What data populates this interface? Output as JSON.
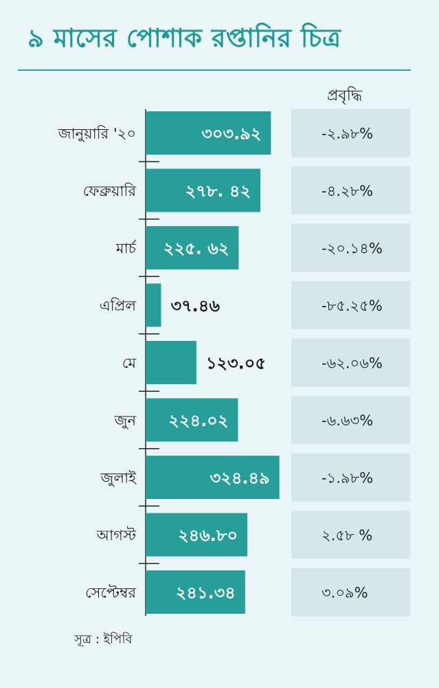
{
  "title": "৯ মাসের পোশাক রপ্তানির চিত্র",
  "growth_header": "প্রবৃদ্ধি",
  "source": "সূত্র : ইপিবি",
  "colors": {
    "bar": "#279e9a",
    "accent": "#1f9a97",
    "growth_cell": "#d5e7ea",
    "background": "#e9f5f7"
  },
  "chart_data": {
    "type": "bar",
    "orientation": "horizontal",
    "title": "৯ মাসের পোশাক রপ্তানির চিত্র",
    "categories": [
      "জানুয়ারি '২০",
      "ফেব্রুয়ারি",
      "মার্চ",
      "এপ্রিল",
      "মে",
      "জুন",
      "জুলাই",
      "আগস্ট",
      "সেপ্টেম্বর"
    ],
    "values": [
      303.92,
      278.42,
      225.62,
      37.46,
      123.05,
      224.02,
      324.49,
      246.8,
      241.34
    ],
    "value_labels": [
      "৩০৩.৯২",
      "২৭৮. ৪২",
      "২২৫. ৬২",
      "৩৭.৪৬",
      "১২৩.০৫",
      "২২৪.০২",
      "৩২৪.৪৯",
      "২৪৬.৮০",
      "২৪১.৩৪"
    ],
    "growth_labels": [
      "-২.৯৮%",
      "-৪.২৮%",
      "-২০.১৪%",
      "-৮৫.২৫%",
      "-৬২.০৬%",
      "-৬.৬৩%",
      "-১.৯৮%",
      "২.৫৮ %",
      "৩.০৯%"
    ],
    "xlim": [
      0,
      330
    ],
    "grid": false
  }
}
